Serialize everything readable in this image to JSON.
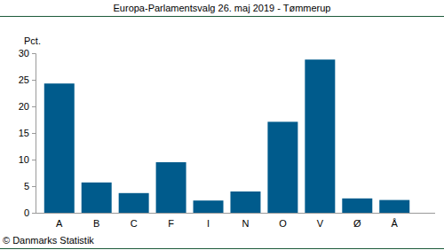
{
  "chart_data": {
    "type": "bar",
    "title": "Europa-Parlamentsvalg 26. maj 2019 - Tømmerup",
    "ylabel": "Pct.",
    "categories": [
      "A",
      "B",
      "C",
      "F",
      "I",
      "N",
      "O",
      "V",
      "Ø",
      "Å"
    ],
    "values": [
      24.3,
      5.7,
      3.7,
      9.5,
      2.3,
      4.0,
      17.1,
      28.8,
      2.7,
      2.4
    ],
    "color": "#005b8c",
    "ylim": [
      0,
      30
    ],
    "yticks": [
      0,
      5,
      10,
      15,
      20,
      25,
      30
    ],
    "grid": false,
    "annotations": [
      "© Danmarks Statistik"
    ]
  }
}
